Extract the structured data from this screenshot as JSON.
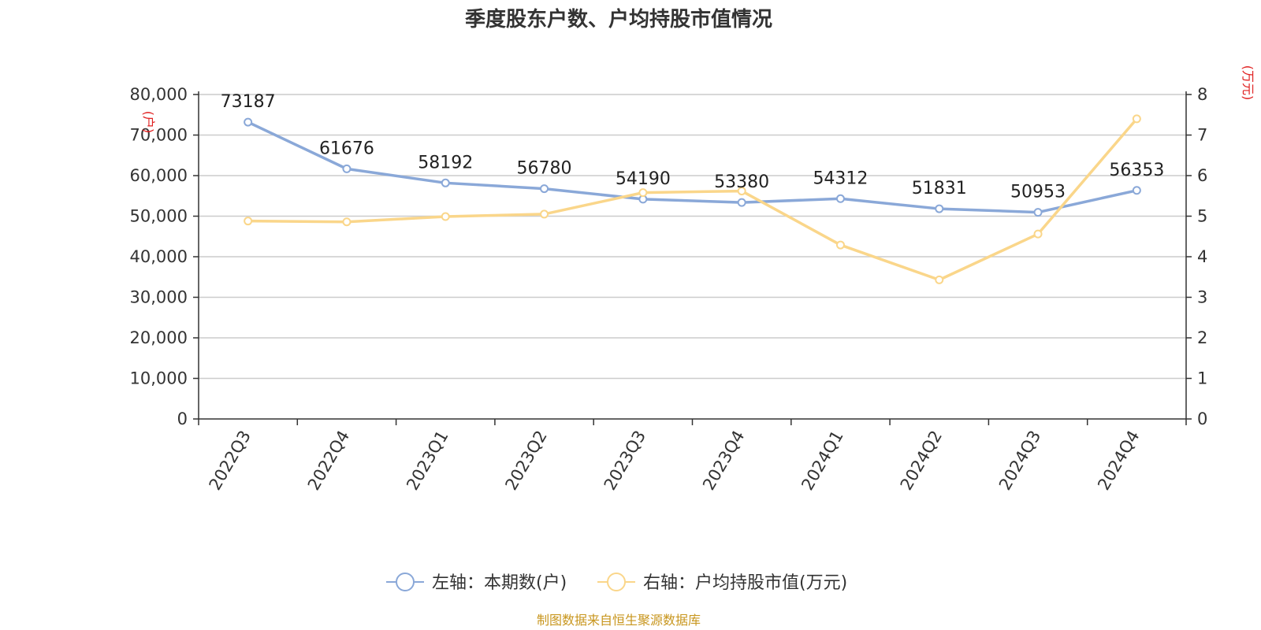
{
  "chart_data": {
    "type": "line",
    "title": "季度股东户数、户均持股市值情况",
    "categories": [
      "2022Q3",
      "2022Q4",
      "2023Q1",
      "2023Q2",
      "2023Q3",
      "2023Q4",
      "2024Q1",
      "2024Q2",
      "2024Q3",
      "2024Q4"
    ],
    "left_axis": {
      "unit": "(户)",
      "ylim": [
        0,
        80000
      ],
      "ticks": [
        "0",
        "10,000",
        "20,000",
        "30,000",
        "40,000",
        "50,000",
        "60,000",
        "70,000",
        "80,000"
      ]
    },
    "right_axis": {
      "unit": "(万元)",
      "ylim": [
        0,
        8
      ],
      "ticks": [
        "0",
        "1",
        "2",
        "3",
        "4",
        "5",
        "6",
        "7",
        "8"
      ]
    },
    "series": [
      {
        "name": "左轴：本期数(户)",
        "axis": "left",
        "color": "#8aa8d8",
        "values": [
          73187,
          61676,
          58192,
          56780,
          54190,
          53380,
          54312,
          51831,
          50953,
          56353
        ],
        "labels": [
          "73187",
          "61676",
          "58192",
          "56780",
          "54190",
          "53380",
          "54312",
          "51831",
          "50953",
          "56353"
        ]
      },
      {
        "name": "右轴：户均持股市值(万元)",
        "axis": "right",
        "color": "#fad68a",
        "values": [
          4.88,
          4.86,
          4.99,
          5.05,
          5.58,
          5.62,
          4.29,
          3.43,
          4.56,
          7.4
        ]
      }
    ],
    "grid": true,
    "legend_position": "bottom",
    "source": "制图数据来自恒生聚源数据库"
  }
}
